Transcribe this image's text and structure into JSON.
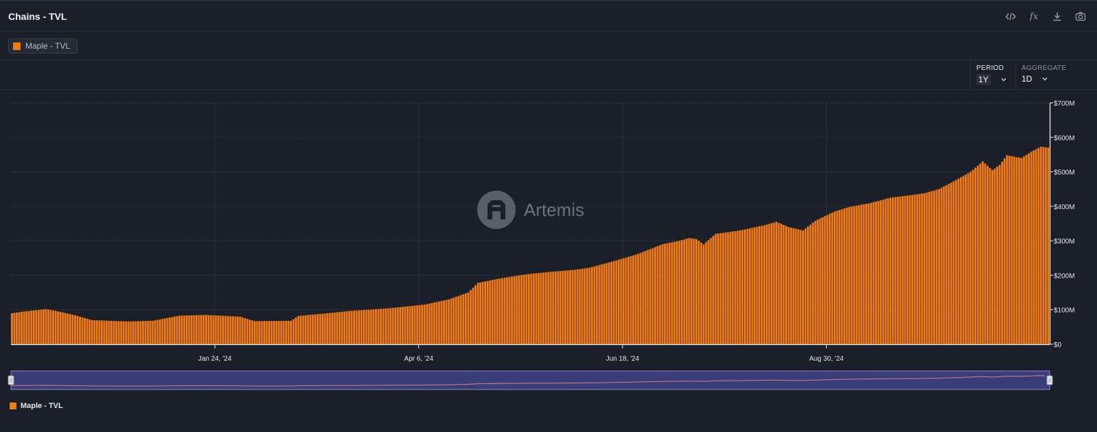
{
  "header": {
    "title": "Chains - TVL"
  },
  "toolbar": {
    "icons": [
      "code-icon",
      "formula-icon",
      "download-icon",
      "camera-icon"
    ],
    "fx_label": "fx"
  },
  "legend": {
    "chip_label": "Maple - TVL",
    "color": "#f57b0e"
  },
  "controls": {
    "period": {
      "label": "PERIOD",
      "value": "1Y"
    },
    "aggregate": {
      "label": "AGGREGATE",
      "value": "1D"
    }
  },
  "watermark": {
    "text": "Artemis"
  },
  "chart_data": {
    "type": "bar",
    "series": [
      {
        "name": "Maple - TVL",
        "color": "#f57b0e"
      }
    ],
    "x_ticks": [
      "Jan 24, '24",
      "Apr 6, '24",
      "Jun 18, '24",
      "Aug 30, '24"
    ],
    "y_ticks": [
      "$0",
      "$100M",
      "$200M",
      "$300M",
      "$400M",
      "$500M",
      "$600M",
      "$700M"
    ],
    "ylim": [
      0,
      700
    ],
    "y_unit": "M USD",
    "grid": true,
    "legend_position": "bottom-left",
    "anchors": [
      [
        0,
        90
      ],
      [
        5,
        95
      ],
      [
        14,
        102
      ],
      [
        20,
        94
      ],
      [
        26,
        84
      ],
      [
        33,
        70
      ],
      [
        48,
        66
      ],
      [
        58,
        68
      ],
      [
        69,
        83
      ],
      [
        80,
        85
      ],
      [
        94,
        80
      ],
      [
        100,
        67
      ],
      [
        115,
        68
      ],
      [
        118,
        82
      ],
      [
        130,
        90
      ],
      [
        140,
        97
      ],
      [
        155,
        104
      ],
      [
        170,
        115
      ],
      [
        180,
        130
      ],
      [
        188,
        150
      ],
      [
        192,
        178
      ],
      [
        202,
        192
      ],
      [
        212,
        203
      ],
      [
        222,
        210
      ],
      [
        232,
        216
      ],
      [
        238,
        222
      ],
      [
        250,
        245
      ],
      [
        258,
        262
      ],
      [
        268,
        290
      ],
      [
        275,
        300
      ],
      [
        279,
        308
      ],
      [
        282,
        305
      ],
      [
        285,
        290
      ],
      [
        290,
        320
      ],
      [
        300,
        330
      ],
      [
        310,
        345
      ],
      [
        315,
        355
      ],
      [
        320,
        340
      ],
      [
        326,
        330
      ],
      [
        331,
        358
      ],
      [
        339,
        385
      ],
      [
        345,
        398
      ],
      [
        354,
        410
      ],
      [
        362,
        425
      ],
      [
        370,
        432
      ],
      [
        376,
        438
      ],
      [
        382,
        450
      ],
      [
        390,
        480
      ],
      [
        395,
        500
      ],
      [
        400,
        530
      ],
      [
        404,
        505
      ],
      [
        407,
        520
      ],
      [
        410,
        548
      ],
      [
        416,
        540
      ],
      [
        420,
        558
      ],
      [
        424,
        573
      ],
      [
        427,
        570
      ]
    ],
    "bar_count": 428
  }
}
